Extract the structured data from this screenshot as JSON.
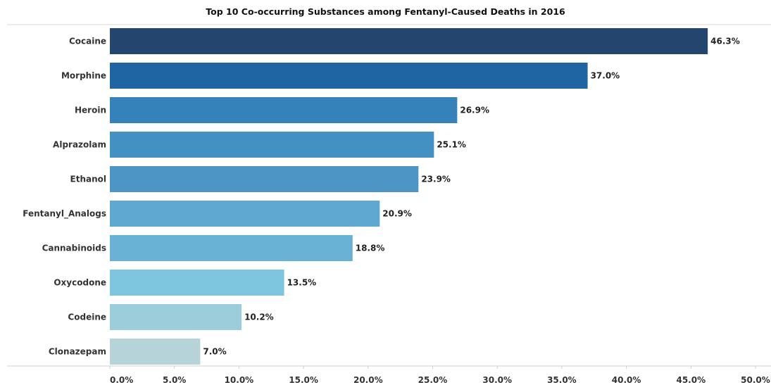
{
  "chart_data": {
    "type": "bar",
    "orientation": "horizontal",
    "title": "Top 10 Co-occurring Substances among Fentanyl-Caused Deaths in 2016",
    "categories": [
      "Cocaine",
      "Morphine",
      "Heroin",
      "Alprazolam",
      "Ethanol",
      "Fentanyl_Analogs",
      "Cannabinoids",
      "Oxycodone",
      "Codeine",
      "Clonazepam"
    ],
    "values": [
      46.3,
      37.0,
      26.9,
      25.1,
      23.9,
      20.9,
      18.8,
      13.5,
      10.2,
      7.0
    ],
    "value_labels": [
      "46.3%",
      "37.0%",
      "26.9%",
      "25.1%",
      "23.9%",
      "20.9%",
      "18.8%",
      "13.5%",
      "10.2%",
      "7.0%"
    ],
    "colors": [
      "#24456e",
      "#1f65a3",
      "#3582ba",
      "#4390c2",
      "#4b96c5",
      "#5ea8d2",
      "#6ab1d6",
      "#7ec6e0",
      "#9ccddb",
      "#b7d3da"
    ],
    "xlim": [
      0,
      50
    ],
    "x_ticks": [
      0,
      5,
      10,
      15,
      20,
      25,
      30,
      35,
      40,
      45,
      50
    ],
    "x_tick_labels": [
      "0.0%",
      "5.0%",
      "10.0%",
      "15.0%",
      "20.0%",
      "25.0%",
      "30.0%",
      "35.0%",
      "40.0%",
      "45.0%",
      "50.0%"
    ],
    "xlabel": "",
    "ylabel": "",
    "grid": false
  }
}
